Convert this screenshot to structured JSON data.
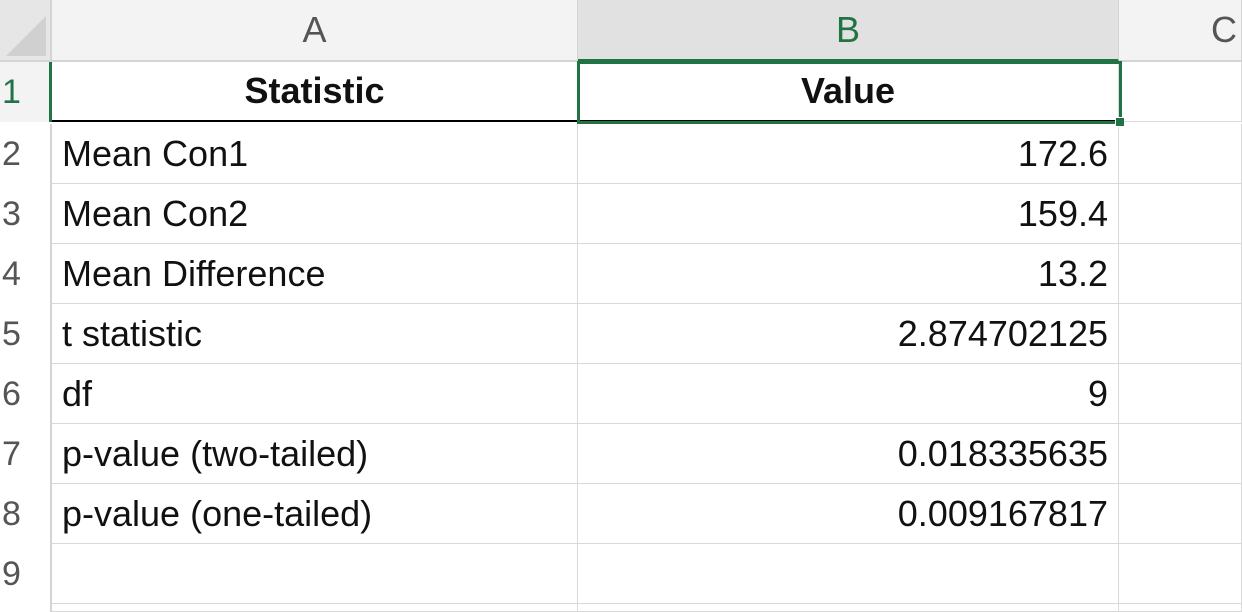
{
  "columns": [
    {
      "label": "A",
      "selected": false
    },
    {
      "label": "B",
      "selected": true
    },
    {
      "label": "C",
      "selected": false
    }
  ],
  "rows": [
    {
      "number": "1",
      "a": "Statistic",
      "b": "Value",
      "header": true
    },
    {
      "number": "2",
      "a": "Mean Con1",
      "b": "172.6"
    },
    {
      "number": "3",
      "a": "Mean Con2",
      "b": "159.4"
    },
    {
      "number": "4",
      "a": "Mean Difference",
      "b": "13.2"
    },
    {
      "number": "5",
      "a": "t statistic",
      "b": "2.874702125"
    },
    {
      "number": "6",
      "a": "df",
      "b": "9"
    },
    {
      "number": "7",
      "a": "p-value (two-tailed)",
      "b": "0.018335635"
    },
    {
      "number": "8",
      "a": "p-value (one-tailed)",
      "b": "0.009167817"
    },
    {
      "number": "9",
      "a": "",
      "b": ""
    }
  ],
  "active_cell": "B1",
  "colors": {
    "accent": "#217346",
    "grid": "#d9d9d9",
    "header_bg": "#f3f3f3"
  }
}
